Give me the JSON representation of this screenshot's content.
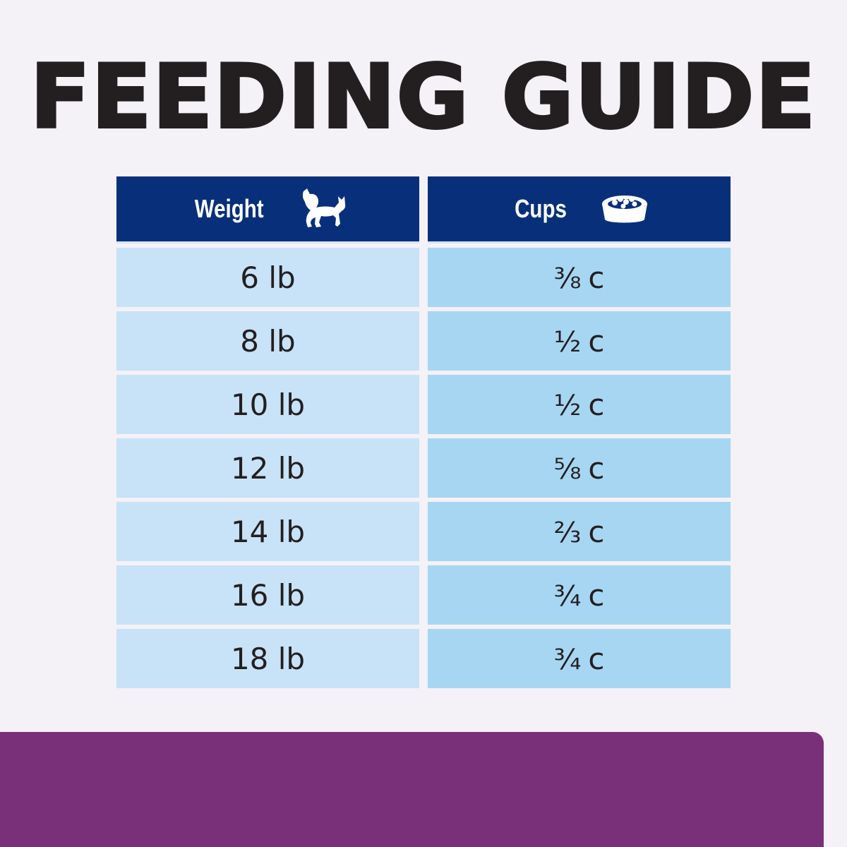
{
  "title": "FEEDING GUIDE",
  "table": {
    "headers": [
      {
        "label": "Weight",
        "icon": "cat-icon"
      },
      {
        "label": "Cups",
        "icon": "food-bowl-icon"
      }
    ],
    "rows": [
      {
        "weight": "6 lb",
        "cups": "⅜",
        "unit": "c"
      },
      {
        "weight": "8 lb",
        "cups": "½",
        "unit": "c"
      },
      {
        "weight": "10 lb",
        "cups": "½",
        "unit": "c"
      },
      {
        "weight": "12 lb",
        "cups": "⅝",
        "unit": "c"
      },
      {
        "weight": "14 lb",
        "cups": "⅔",
        "unit": "c"
      },
      {
        "weight": "16 lb",
        "cups": "¾",
        "unit": "c"
      },
      {
        "weight": "18 lb",
        "cups": "¾",
        "unit": "c"
      }
    ]
  },
  "colors": {
    "header": "#08307a",
    "weight_cell": "#c8e3f7",
    "cups_cell": "#a7d6f3",
    "footer_band": "#7a3079"
  }
}
